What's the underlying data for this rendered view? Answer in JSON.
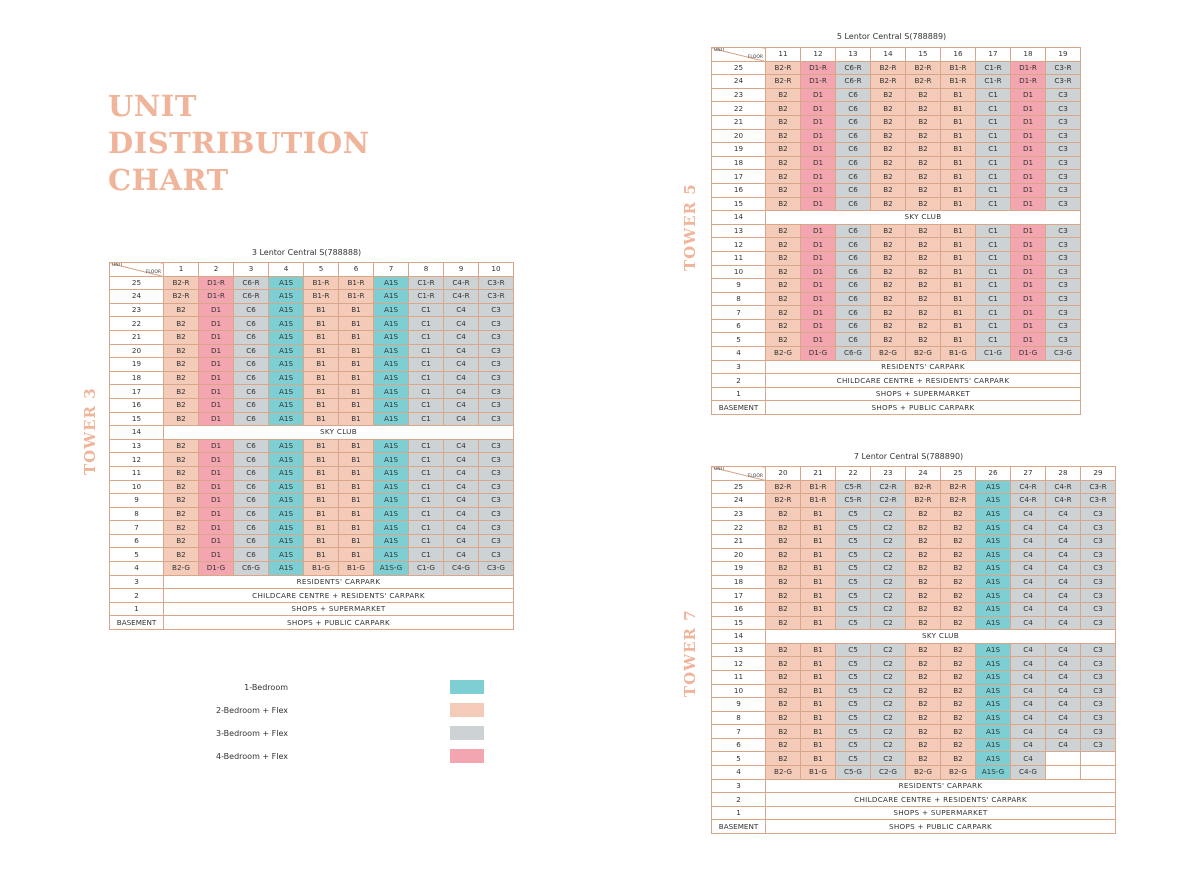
{
  "title": [
    "UNIT",
    "DISTRIBUTION",
    "CHART"
  ],
  "corner": {
    "unit": "UNIT",
    "floor": "FLOOR"
  },
  "legend": [
    {
      "label": "1-Bedroom",
      "color": "#7ecfd3"
    },
    {
      "label": "2-Bedroom + Flex",
      "color": "#f4cbb8"
    },
    {
      "label": "3-Bedroom + Flex",
      "color": "#cdd2d5"
    },
    {
      "label": "4-Bedroom + Flex",
      "color": "#f4a6b0"
    }
  ],
  "towers": [
    {
      "id": "tower3",
      "label": "TOWER 3",
      "address": "3 Lentor Central S(788888)",
      "units": [
        "1",
        "2",
        "3",
        "4",
        "5",
        "6",
        "7",
        "8",
        "9",
        "10"
      ],
      "unit_types": [
        {
          "base": "B2",
          "cls": "c2"
        },
        {
          "base": "D1",
          "cls": "c4"
        },
        {
          "base": "C6",
          "cls": "c3"
        },
        {
          "base": "A1S",
          "cls": "c1"
        },
        {
          "base": "B1",
          "cls": "c2"
        },
        {
          "base": "B1",
          "cls": "c2"
        },
        {
          "base": "A1S",
          "cls": "c1"
        },
        {
          "base": "C1",
          "cls": "c3"
        },
        {
          "base": "C4",
          "cls": "c3"
        },
        {
          "base": "C3",
          "cls": "c3"
        }
      ],
      "row25": [
        "B2-R",
        "D1-R",
        "C6-R",
        "A1S",
        "B1-R",
        "B1-R",
        "A1S",
        "C1-R",
        "C4-R",
        "C3-R"
      ],
      "row24": [
        "B2-R",
        "D1-R",
        "C6-R",
        "A1S",
        "B1-R",
        "B1-R",
        "A1S",
        "C1-R",
        "C4-R",
        "C3-R"
      ],
      "row4": [
        "B2-G",
        "D1-G",
        "C6-G",
        "A1S",
        "B1-G",
        "B1-G",
        "A1S-G",
        "C1-G",
        "C4-G",
        "C3-G"
      ],
      "row5": [
        "B2",
        "D1",
        "C6",
        "A1S",
        "B1",
        "B1",
        "A1S",
        "C1",
        "C4",
        "C3"
      ],
      "sky_club": "SKY CLUB",
      "bottom": [
        {
          "floor": "3",
          "text": "RESIDENTS' CARPARK"
        },
        {
          "floor": "2",
          "text": "CHILDCARE CENTRE + RESIDENTS' CARPARK"
        },
        {
          "floor": "1",
          "text": "SHOPS + SUPERMARKET"
        },
        {
          "floor": "BASEMENT",
          "text": "SHOPS + PUBLIC CARPARK"
        }
      ]
    },
    {
      "id": "tower5",
      "label": "TOWER 5",
      "address": "5 Lentor Central S(788889)",
      "units": [
        "11",
        "12",
        "13",
        "14",
        "15",
        "16",
        "17",
        "18",
        "19"
      ],
      "unit_types": [
        {
          "base": "B2",
          "cls": "c2"
        },
        {
          "base": "D1",
          "cls": "c4"
        },
        {
          "base": "C6",
          "cls": "c3"
        },
        {
          "base": "B2",
          "cls": "c2"
        },
        {
          "base": "B2",
          "cls": "c2"
        },
        {
          "base": "B1",
          "cls": "c2"
        },
        {
          "base": "C1",
          "cls": "c3"
        },
        {
          "base": "D1",
          "cls": "c4"
        },
        {
          "base": "C3",
          "cls": "c3"
        }
      ],
      "row25": [
        "B2-R",
        "D1-R",
        "C6-R",
        "B2-R",
        "B2-R",
        "B1-R",
        "C1-R",
        "D1-R",
        "C3-R"
      ],
      "row24": [
        "B2-R",
        "D1-R",
        "C6-R",
        "B2-R",
        "B2-R",
        "B1-R",
        "C1-R",
        "D1-R",
        "C3-R"
      ],
      "row4": [
        "B2-G",
        "D1-G",
        "C6-G",
        "B2-G",
        "B2-G",
        "B1-G",
        "C1-G",
        "D1-G",
        "C3-G"
      ],
      "row5": [
        "B2",
        "D1",
        "C6",
        "B2",
        "B2",
        "B1",
        "C1",
        "D1",
        "C3"
      ],
      "sky_club": "SKY CLUB",
      "bottom": [
        {
          "floor": "3",
          "text": "RESIDENTS' CARPARK"
        },
        {
          "floor": "2",
          "text": "CHILDCARE CENTRE + RESIDENTS' CARPARK"
        },
        {
          "floor": "1",
          "text": "SHOPS + SUPERMARKET"
        },
        {
          "floor": "BASEMENT",
          "text": "SHOPS + PUBLIC CARPARK"
        }
      ]
    },
    {
      "id": "tower7",
      "label": "TOWER 7",
      "address": "7 Lentor Central S(788890)",
      "units": [
        "20",
        "21",
        "22",
        "23",
        "24",
        "25",
        "26",
        "27",
        "28",
        "29"
      ],
      "unit_types": [
        {
          "base": "B2",
          "cls": "c2"
        },
        {
          "base": "B1",
          "cls": "c2"
        },
        {
          "base": "C5",
          "cls": "c3"
        },
        {
          "base": "C2",
          "cls": "c3"
        },
        {
          "base": "B2",
          "cls": "c2"
        },
        {
          "base": "B2",
          "cls": "c2"
        },
        {
          "base": "A1S",
          "cls": "c1"
        },
        {
          "base": "C4",
          "cls": "c3"
        },
        {
          "base": "C4",
          "cls": "c3"
        },
        {
          "base": "C3",
          "cls": "c3"
        }
      ],
      "row25": [
        "B2-R",
        "B1-R",
        "C5-R",
        "C2-R",
        "B2-R",
        "B2-R",
        "A1S",
        "C4-R",
        "C4-R",
        "C3-R"
      ],
      "row24": [
        "B2-R",
        "B1-R",
        "C5-R",
        "C2-R",
        "B2-R",
        "B2-R",
        "A1S",
        "C4-R",
        "C4-R",
        "C3-R"
      ],
      "row4": [
        "B2-G",
        "B1-G",
        "C5-G",
        "C2-G",
        "B2-G",
        "B2-G",
        "A1S-G",
        "C4-G",
        "",
        ""
      ],
      "row5": [
        "B2",
        "B1",
        "C5",
        "C2",
        "B2",
        "B2",
        "A1S",
        "C4",
        "",
        ""
      ],
      "sky_club": "SKY CLUB",
      "bottom": [
        {
          "floor": "3",
          "text": "RESIDENTS' CARPARK"
        },
        {
          "floor": "2",
          "text": "CHILDCARE CENTRE + RESIDENTS' CARPARK"
        },
        {
          "floor": "1",
          "text": "SHOPS + SUPERMARKET"
        },
        {
          "floor": "BASEMENT",
          "text": "SHOPS + PUBLIC CARPARK"
        }
      ]
    }
  ]
}
